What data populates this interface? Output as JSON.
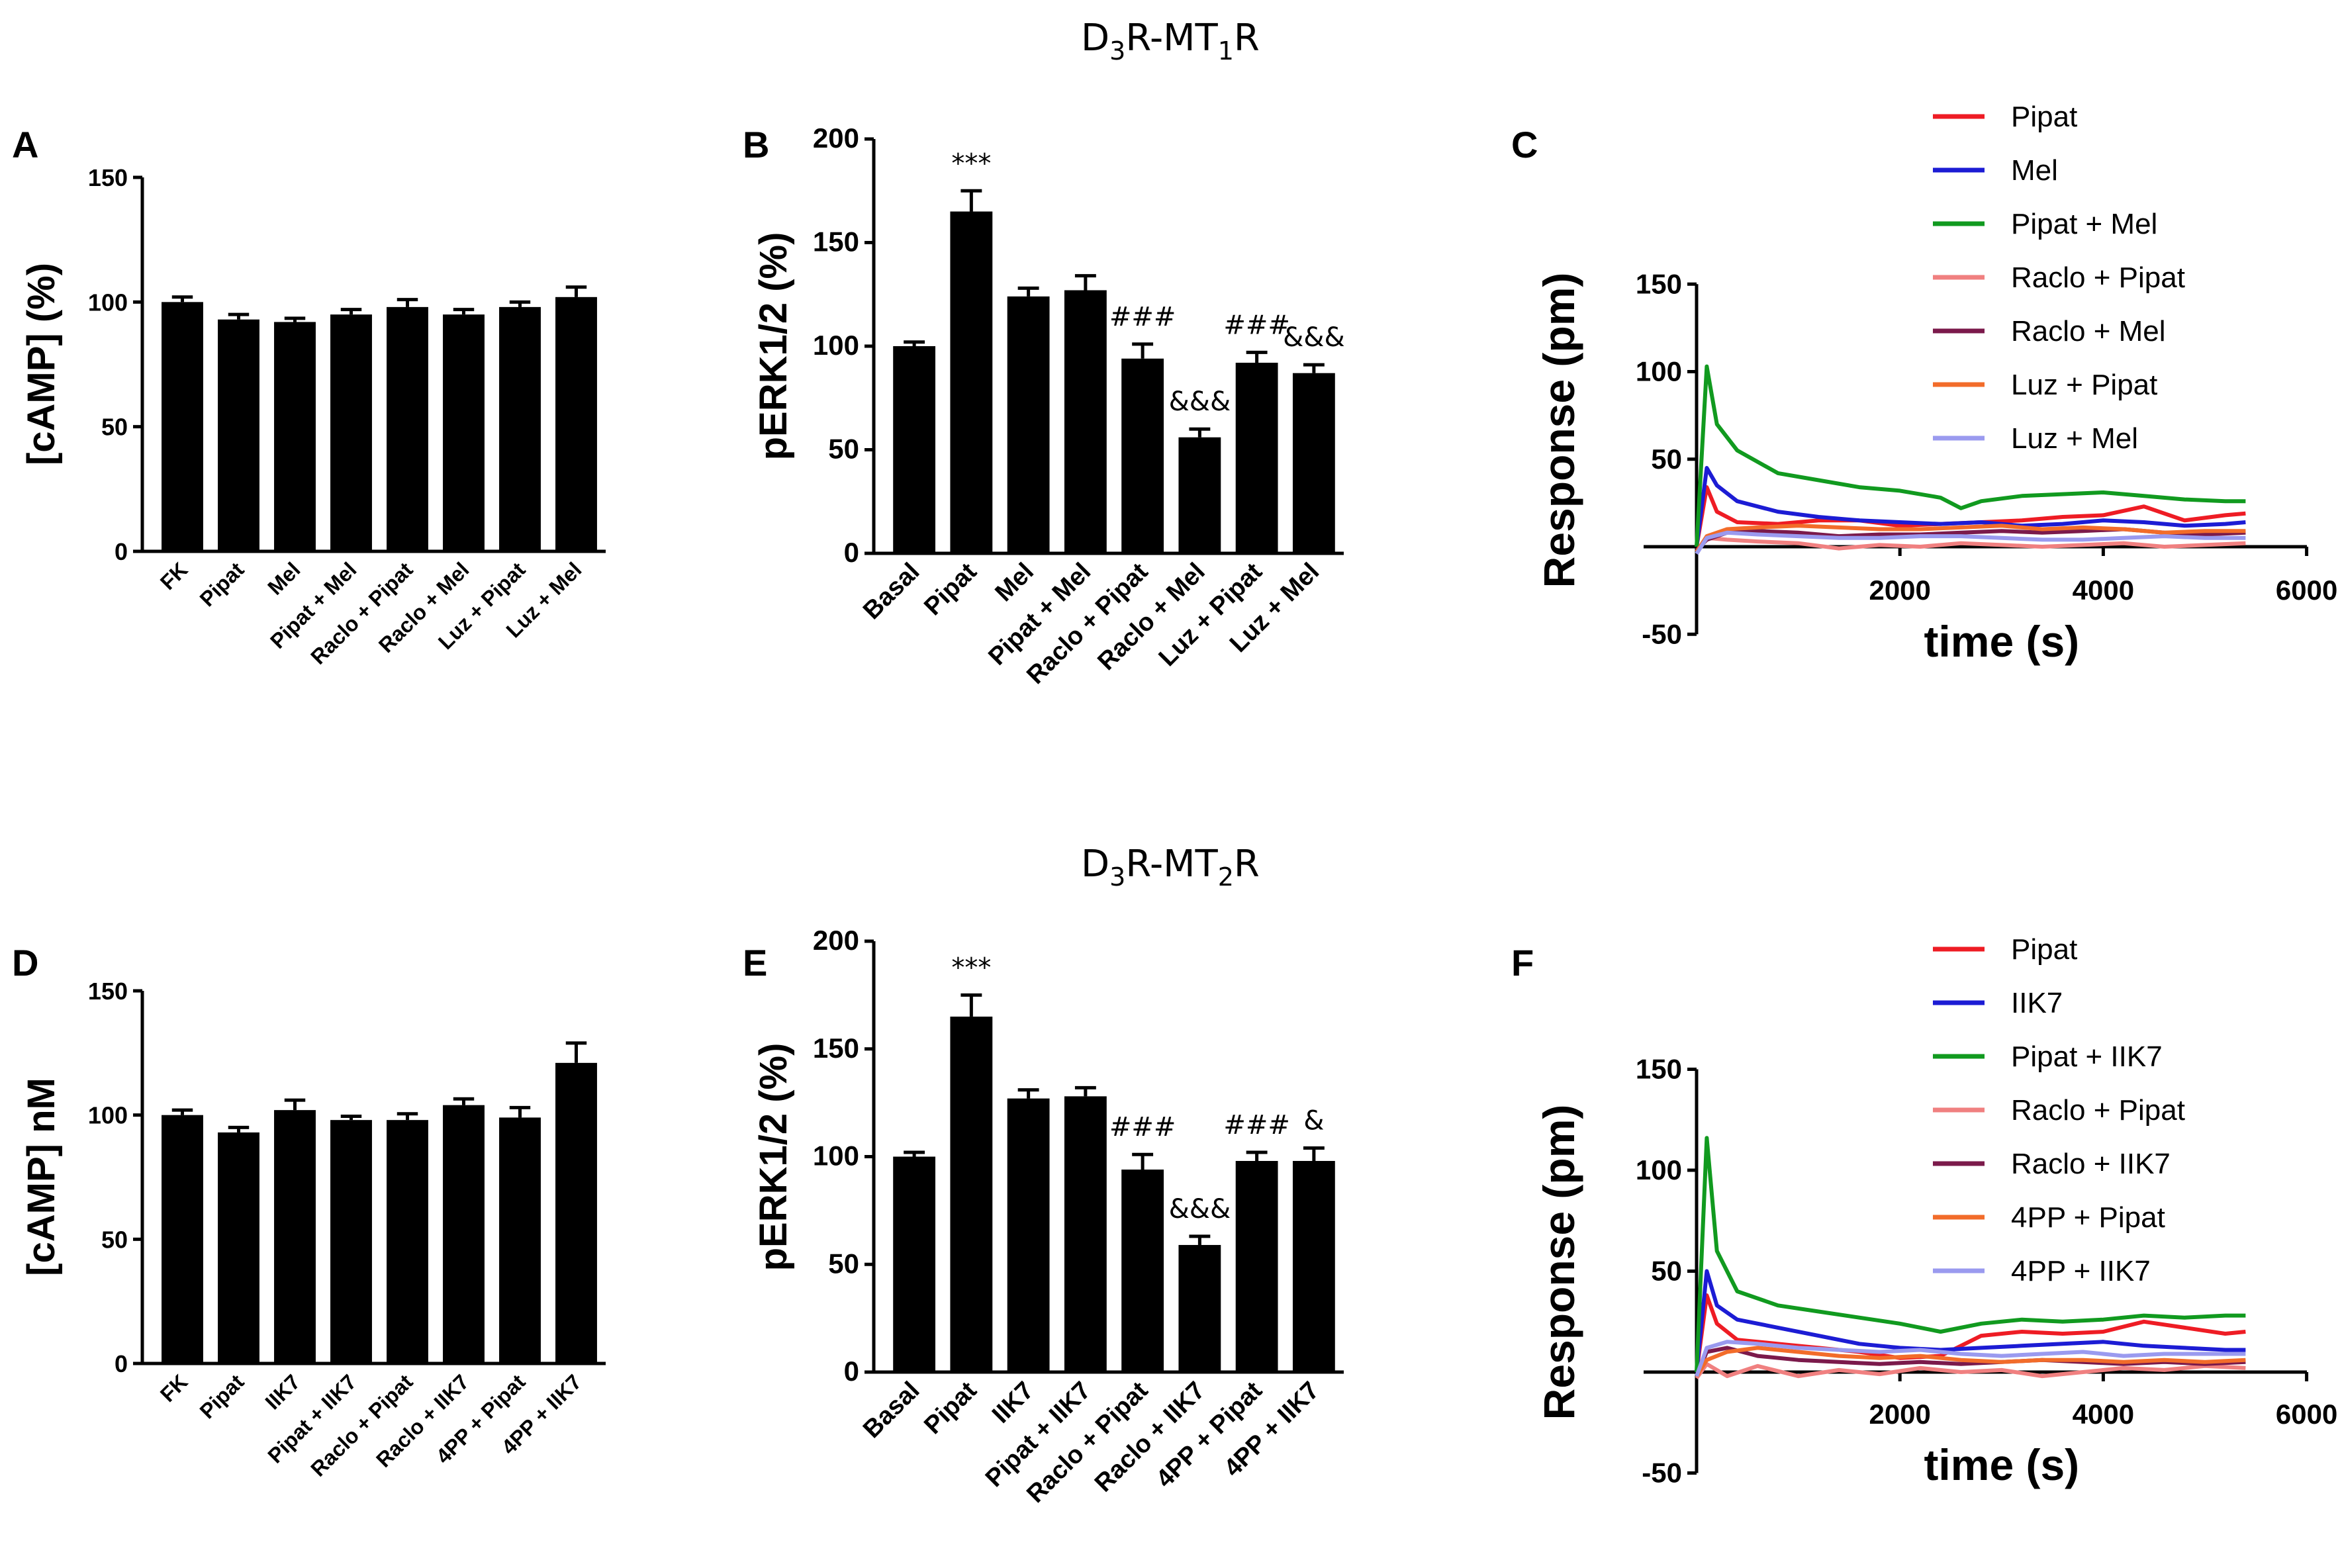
{
  "figure": {
    "title_top": {
      "base": "D",
      "s1": "3",
      "mid": "R-MT",
      "s2": "1",
      "end": "R"
    },
    "title_bottom": {
      "base": "D",
      "s1": "3",
      "mid": "R-MT",
      "s2": "2",
      "end": "R"
    }
  },
  "chart_data": [
    {
      "panel": "A",
      "type": "bar",
      "ylabel": "[cAMP] (%)",
      "ylim": [
        0,
        150
      ],
      "yticks": [
        0,
        50,
        100,
        150
      ],
      "categories": [
        "FK",
        "Pipat",
        "Mel",
        "Pipat + Mel",
        "Raclo + Pipat",
        "Raclo + Mel",
        "Luz + Pipat",
        "Luz + Mel"
      ],
      "values": [
        100,
        93,
        92,
        95,
        98,
        95,
        98,
        102
      ],
      "errors": [
        2,
        2,
        1.5,
        2,
        3,
        2,
        2,
        4
      ],
      "annotations": [
        "",
        "",
        "",
        "",
        "",
        "",
        "",
        ""
      ]
    },
    {
      "panel": "B",
      "type": "bar",
      "ylabel": "pERK1/2 (%)",
      "ylim": [
        0,
        200
      ],
      "yticks": [
        0,
        50,
        100,
        150,
        200
      ],
      "categories": [
        "Basal",
        "Pipat",
        "Mel",
        "Pipat + Mel",
        "Raclo + Pipat",
        "Raclo + Mel",
        "Luz + Pipat",
        "Luz + Mel"
      ],
      "values": [
        100,
        165,
        124,
        127,
        94,
        56,
        92,
        87
      ],
      "errors": [
        2,
        10,
        4,
        7,
        7,
        4,
        5,
        4
      ],
      "annotations": [
        "",
        "***",
        "",
        "",
        "###",
        "&&&",
        "###",
        "&&&"
      ]
    },
    {
      "panel": "C",
      "type": "line",
      "xlabel": "time (s)",
      "ylabel": "Response (pm)",
      "xlim": [
        0,
        6000
      ],
      "ylim": [
        -50,
        150
      ],
      "xticks": [
        2000,
        4000,
        6000
      ],
      "yticks": [
        -50,
        50,
        100,
        150
      ],
      "legend_position": "top-right",
      "series": [
        {
          "name": "Pipat",
          "color": "#ee1c24",
          "x": [
            0,
            100,
            200,
            400,
            800,
            1200,
            1600,
            2000,
            2400,
            2800,
            3200,
            3600,
            4000,
            4400,
            4800,
            5200,
            5400
          ],
          "y": [
            0,
            34,
            20,
            14,
            13,
            15,
            15,
            12,
            13,
            14,
            15,
            17,
            18,
            23,
            15,
            18,
            19
          ]
        },
        {
          "name": "Mel",
          "color": "#1c1cd4",
          "x": [
            0,
            100,
            200,
            400,
            800,
            1200,
            1600,
            2000,
            2400,
            2800,
            3200,
            3600,
            4000,
            4400,
            4800,
            5200,
            5400
          ],
          "y": [
            0,
            45,
            35,
            26,
            20,
            17,
            15,
            14,
            13,
            14,
            12,
            13,
            15,
            14,
            12,
            13,
            14
          ]
        },
        {
          "name": "Pipat + Mel",
          "color": "#119a1f",
          "x": [
            0,
            100,
            200,
            400,
            800,
            1200,
            1600,
            2000,
            2400,
            2600,
            2800,
            3200,
            3600,
            4000,
            4400,
            4800,
            5200,
            5400
          ],
          "y": [
            0,
            103,
            70,
            55,
            42,
            38,
            34,
            32,
            28,
            22,
            26,
            29,
            30,
            31,
            29,
            27,
            26,
            26
          ]
        },
        {
          "name": "Raclo + Pipat",
          "color": "#f08080",
          "x": [
            0,
            100,
            300,
            600,
            1000,
            1400,
            1800,
            2200,
            2600,
            3000,
            3400,
            3800,
            4200,
            4600,
            5000,
            5400
          ],
          "y": [
            -3,
            5,
            4,
            3,
            2,
            -1,
            1,
            0,
            2,
            1,
            0,
            1,
            2,
            0,
            1,
            2
          ]
        },
        {
          "name": "Raclo + Mel",
          "color": "#7b1a4b",
          "x": [
            0,
            100,
            300,
            600,
            1000,
            1400,
            1800,
            2200,
            2600,
            3000,
            3400,
            3800,
            4200,
            4600,
            5000,
            5400
          ],
          "y": [
            -2,
            4,
            8,
            9,
            8,
            6,
            7,
            7,
            8,
            9,
            8,
            9,
            10,
            8,
            7,
            8
          ]
        },
        {
          "name": "Luz + Pipat",
          "color": "#f26c2a",
          "x": [
            0,
            100,
            300,
            600,
            1000,
            1400,
            1800,
            2200,
            2600,
            3000,
            3400,
            3800,
            4200,
            4600,
            5000,
            5400
          ],
          "y": [
            -3,
            6,
            10,
            11,
            12,
            11,
            10,
            10,
            11,
            12,
            10,
            11,
            10,
            8,
            9,
            9
          ]
        },
        {
          "name": "Luz + Mel",
          "color": "#9a9aef",
          "x": [
            0,
            100,
            300,
            600,
            1000,
            1400,
            1800,
            2200,
            2600,
            3000,
            3400,
            3800,
            4200,
            4600,
            5000,
            5400
          ],
          "y": [
            -4,
            5,
            8,
            7,
            6,
            5,
            5,
            6,
            6,
            5,
            4,
            4,
            5,
            6,
            5,
            5
          ]
        }
      ]
    },
    {
      "panel": "D",
      "type": "bar",
      "ylabel": "[cAMP] nM",
      "ylim": [
        0,
        150
      ],
      "yticks": [
        0,
        50,
        100,
        150
      ],
      "categories": [
        "FK",
        "Pipat",
        "IIK7",
        "Pipat + IIK7",
        "Raclo + Pipat",
        "Raclo + IIK7",
        "4PP + Pipat",
        "4PP + IIK7"
      ],
      "values": [
        100,
        93,
        102,
        98,
        98,
        104,
        99,
        121
      ],
      "errors": [
        2,
        2,
        4,
        1.5,
        2.5,
        2.5,
        4,
        8
      ],
      "annotations": [
        "",
        "",
        "",
        "",
        "",
        "",
        "",
        ""
      ]
    },
    {
      "panel": "E",
      "type": "bar",
      "ylabel": "pERK1/2 (%)",
      "ylim": [
        0,
        200
      ],
      "yticks": [
        0,
        50,
        100,
        150,
        200
      ],
      "categories": [
        "Basal",
        "Pipat",
        "IIK7",
        "Pipat + IIK7",
        "Raclo + Pipat",
        "Raclo + IIK7",
        "4PP + Pipat",
        "4PP + IIK7"
      ],
      "values": [
        100,
        165,
        127,
        128,
        94,
        59,
        98,
        98
      ],
      "errors": [
        2,
        10,
        4,
        4,
        7,
        4,
        4,
        6
      ],
      "annotations": [
        "",
        "***",
        "",
        "",
        "###",
        "&&&",
        "###",
        "&"
      ]
    },
    {
      "panel": "F",
      "type": "line",
      "xlabel": "time (s)",
      "ylabel": "Response (pm)",
      "xlim": [
        0,
        6000
      ],
      "ylim": [
        -50,
        150
      ],
      "xticks": [
        2000,
        4000,
        6000
      ],
      "yticks": [
        -50,
        50,
        100,
        150
      ],
      "legend_position": "top-right",
      "series": [
        {
          "name": "Pipat",
          "color": "#ee1c24",
          "x": [
            0,
            100,
            200,
            400,
            800,
            1200,
            1600,
            2000,
            2400,
            2800,
            3200,
            3600,
            4000,
            4400,
            4800,
            5200,
            5400
          ],
          "y": [
            0,
            38,
            24,
            16,
            14,
            12,
            10,
            7,
            8,
            18,
            20,
            19,
            20,
            25,
            22,
            19,
            20
          ]
        },
        {
          "name": "IIK7",
          "color": "#1c1cd4",
          "x": [
            0,
            100,
            200,
            400,
            800,
            1200,
            1600,
            2000,
            2400,
            2800,
            3200,
            3600,
            4000,
            4400,
            4800,
            5200,
            5400
          ],
          "y": [
            0,
            50,
            33,
            26,
            22,
            18,
            14,
            12,
            11,
            12,
            13,
            14,
            15,
            13,
            12,
            11,
            11
          ]
        },
        {
          "name": "Pipat + IIK7",
          "color": "#119a1f",
          "x": [
            0,
            100,
            200,
            400,
            800,
            1200,
            1600,
            2000,
            2400,
            2800,
            3200,
            3600,
            4000,
            4400,
            4800,
            5200,
            5400
          ],
          "y": [
            0,
            116,
            60,
            40,
            33,
            30,
            27,
            24,
            20,
            24,
            26,
            25,
            26,
            28,
            27,
            28,
            28
          ]
        },
        {
          "name": "Raclo + Pipat",
          "color": "#f08080",
          "x": [
            0,
            100,
            300,
            600,
            1000,
            1400,
            1800,
            2200,
            2600,
            3000,
            3400,
            3800,
            4200,
            4600,
            5000,
            5400
          ],
          "y": [
            -3,
            4,
            -2,
            3,
            -2,
            1,
            -1,
            2,
            0,
            1,
            -2,
            0,
            2,
            1,
            3,
            2
          ]
        },
        {
          "name": "Raclo + IIK7",
          "color": "#7b1a4b",
          "x": [
            0,
            100,
            300,
            600,
            1000,
            1400,
            1800,
            2200,
            2600,
            3000,
            3400,
            3800,
            4200,
            4600,
            5000,
            5400
          ],
          "y": [
            -2,
            10,
            12,
            8,
            6,
            5,
            4,
            5,
            4,
            5,
            6,
            5,
            4,
            5,
            4,
            5
          ]
        },
        {
          "name": "4PP + Pipat",
          "color": "#f26c2a",
          "x": [
            0,
            100,
            300,
            600,
            1000,
            1400,
            1800,
            2200,
            2600,
            3000,
            3400,
            3800,
            4200,
            4600,
            5000,
            5400
          ],
          "y": [
            -2,
            6,
            10,
            12,
            10,
            8,
            7,
            8,
            6,
            5,
            6,
            6,
            5,
            6,
            5,
            6
          ]
        },
        {
          "name": "4PP + IIK7",
          "color": "#9a9aef",
          "x": [
            0,
            100,
            300,
            600,
            1000,
            1400,
            1800,
            2200,
            2600,
            3000,
            3400,
            3800,
            4200,
            4600,
            5000,
            5400
          ],
          "y": [
            -2,
            12,
            15,
            14,
            12,
            11,
            10,
            11,
            9,
            8,
            9,
            10,
            8,
            9,
            9,
            9
          ]
        }
      ]
    }
  ]
}
